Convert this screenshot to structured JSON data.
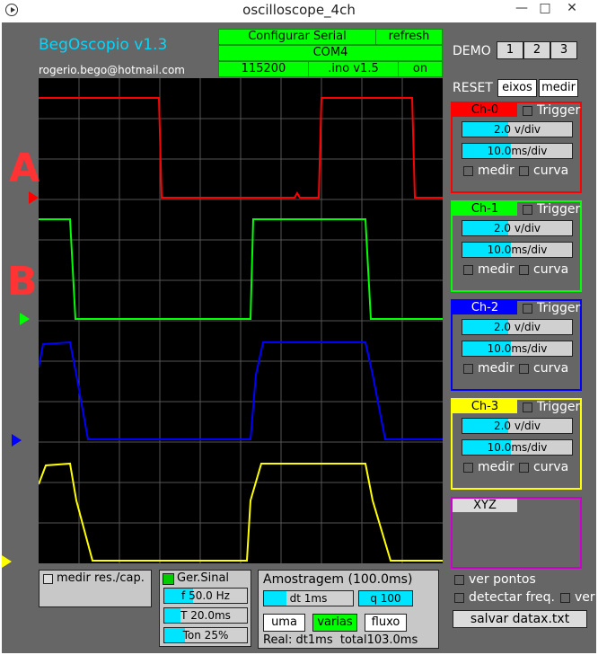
{
  "window": {
    "title": "oscilloscope_4ch",
    "minimize": "—",
    "maximize": "□",
    "close": "✕"
  },
  "app": {
    "title": "BegOscopio v1.3",
    "email": "rogerio.bego@hotmail.com"
  },
  "serial": {
    "config_label": "Configurar Serial",
    "refresh_label": "refresh",
    "port": "COM4",
    "baud": "115200",
    "ino": ".ino v1.5",
    "on_label": "on"
  },
  "demo": {
    "label": "DEMO",
    "buttons": [
      "1",
      "2",
      "3"
    ]
  },
  "reset": {
    "label": "RESET",
    "eixos": "eixos",
    "medir": "medir"
  },
  "markers": {
    "a": "A",
    "b": "B"
  },
  "channels": [
    {
      "name": "Ch-0",
      "color": "#ff0000",
      "trigger": "Trigger",
      "vdiv": "2.0 v/div",
      "tdiv": "10.0ms/div",
      "medir": "medir",
      "curva": "curva"
    },
    {
      "name": "Ch-1",
      "color": "#00ff00",
      "trigger": "Trigger",
      "vdiv": "2.0 v/div",
      "tdiv": "10.0ms/div",
      "medir": "medir",
      "curva": "curva"
    },
    {
      "name": "Ch-2",
      "color": "#0000ff",
      "trigger": "Trigger",
      "vdiv": "2.0 v/div",
      "tdiv": "10.0ms/div",
      "medir": "medir",
      "curva": "curva"
    },
    {
      "name": "Ch-3",
      "color": "#ffff00",
      "trigger": "Trigger",
      "vdiv": "2.0 v/div",
      "tdiv": "10.0ms/div",
      "medir": "medir",
      "curva": "curva"
    }
  ],
  "xyz": {
    "label": "XYZ",
    "color": "#cc00cc"
  },
  "options": {
    "ver_pontos": "ver pontos",
    "detectar_freq": "detectar freq.",
    "ver": "ver",
    "salvar": "salvar datax.txt"
  },
  "medir_res": {
    "label": "medir res./cap."
  },
  "gerador": {
    "label": "Ger.Sinal",
    "freq": "f 50.0 Hz",
    "period": "T 20.0ms",
    "ton": "Ton 25%"
  },
  "amostragem": {
    "label": "Amostragem (100.0ms)",
    "dt": "dt 1ms",
    "q": "q 100",
    "uma": "uma",
    "varias": "varias",
    "fluxo": "fluxo",
    "real": "Real: dt1ms  total103.0ms"
  }
}
